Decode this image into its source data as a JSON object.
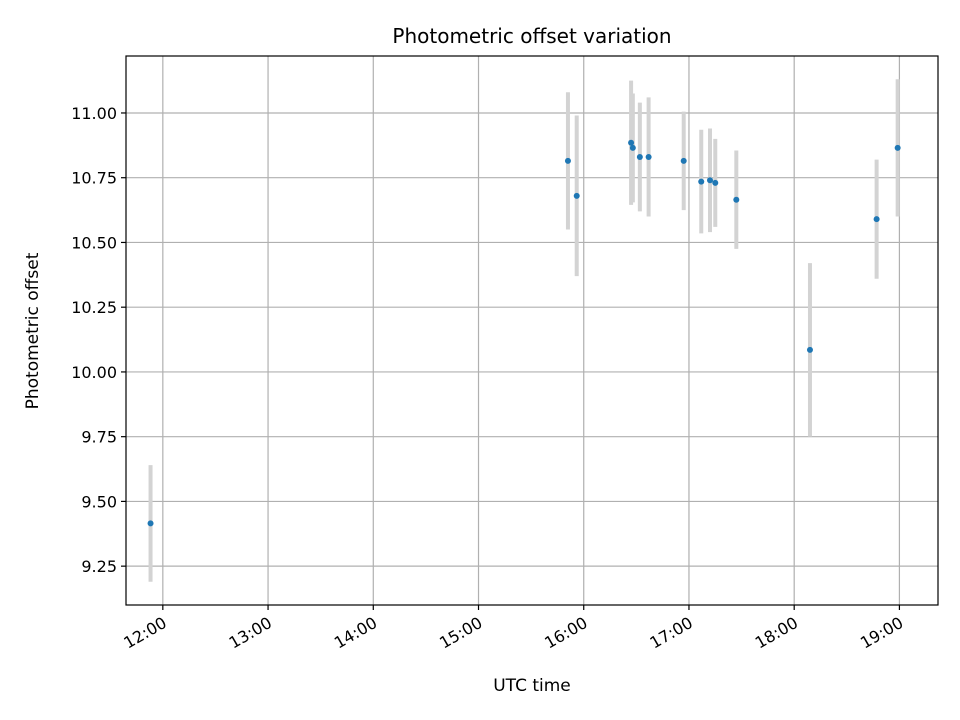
{
  "chart_data": {
    "type": "scatter",
    "title": "Photometric offset variation",
    "xlabel": "UTC time",
    "ylabel": "Photometric offset",
    "grid": true,
    "xlim": [
      "11:39",
      "19:22"
    ],
    "ylim": [
      9.1,
      11.22
    ],
    "x_ticks": [
      "12:00",
      "13:00",
      "14:00",
      "15:00",
      "16:00",
      "17:00",
      "18:00",
      "19:00"
    ],
    "y_ticks": [
      "9.25",
      "9.50",
      "9.75",
      "10.00",
      "10.25",
      "10.50",
      "10.75",
      "11.00"
    ],
    "marker_color": "#1f77b4",
    "errorbar_color": "#d3d3d3",
    "points": [
      {
        "time": "11:53",
        "y": 9.415,
        "err": 0.225
      },
      {
        "time": "15:51",
        "y": 10.815,
        "err": 0.265
      },
      {
        "time": "15:56",
        "y": 10.68,
        "err": 0.31
      },
      {
        "time": "16:27",
        "y": 10.885,
        "err": 0.24
      },
      {
        "time": "16:28",
        "y": 10.865,
        "err": 0.21
      },
      {
        "time": "16:32",
        "y": 10.83,
        "err": 0.21
      },
      {
        "time": "16:37",
        "y": 10.83,
        "err": 0.23
      },
      {
        "time": "16:57",
        "y": 10.815,
        "err": 0.19
      },
      {
        "time": "17:07",
        "y": 10.735,
        "err": 0.2
      },
      {
        "time": "17:12",
        "y": 10.74,
        "err": 0.2
      },
      {
        "time": "17:15",
        "y": 10.73,
        "err": 0.17
      },
      {
        "time": "17:27",
        "y": 10.665,
        "err": 0.19
      },
      {
        "time": "18:09",
        "y": 10.085,
        "err": 0.335
      },
      {
        "time": "18:47",
        "y": 10.59,
        "err": 0.23
      },
      {
        "time": "18:59",
        "y": 10.865,
        "err": 0.265
      }
    ]
  }
}
